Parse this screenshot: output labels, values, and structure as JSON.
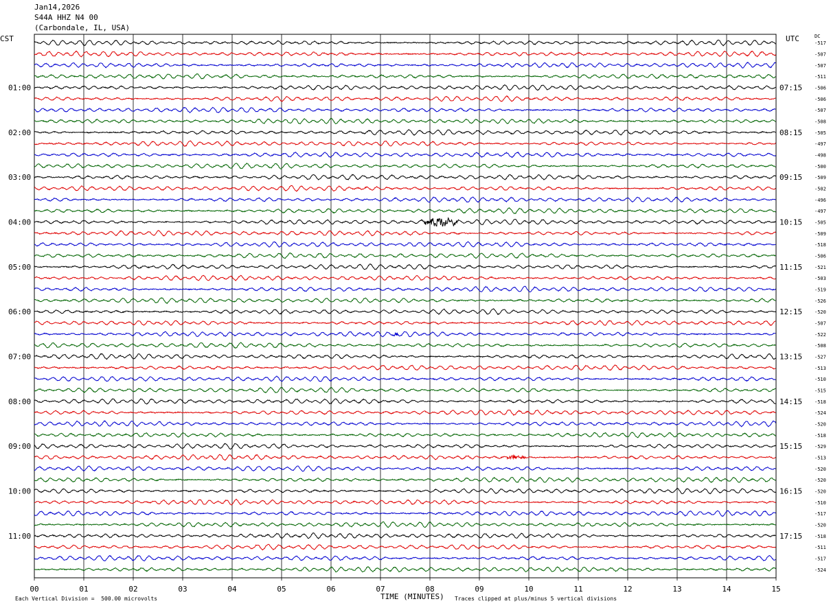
{
  "header": {
    "date": "Jan14,2026",
    "station": "S44A HHZ N4 00",
    "location": "(Carbondale, IL, USA)"
  },
  "labels": {
    "left_tz": "CST",
    "right_tz": "UTC",
    "dc_header": "DC",
    "xlabel": "TIME (MINUTES)",
    "footer_left": "Each Vertical Division =  500.00 microvolts",
    "footer_right": "Traces clipped at plus/minus 5 vertical divisions"
  },
  "colors": {
    "trace_cycle": [
      "#000000",
      "#e00000",
      "#0000d0",
      "#006400"
    ],
    "grid": "#000000"
  },
  "chart_data": {
    "type": "line",
    "title": "",
    "xlabel": "TIME (MINUTES)",
    "ylabel": "",
    "xlim": [
      0,
      15
    ],
    "x_ticks": [
      "00",
      "01",
      "02",
      "03",
      "04",
      "05",
      "06",
      "07",
      "08",
      "09",
      "10",
      "11",
      "12",
      "13",
      "14",
      "15"
    ],
    "left_time_labels": [
      "01:00",
      "02:00",
      "03:00",
      "04:00",
      "05:00",
      "06:00",
      "07:00",
      "08:00",
      "09:00",
      "10:00",
      "11:00"
    ],
    "right_time_labels": [
      "07:15",
      "08:15",
      "09:15",
      "10:15",
      "11:15",
      "12:15",
      "13:15",
      "14:15",
      "15:15",
      "16:15",
      "17:15"
    ],
    "dc_offsets": [
      -517,
      -507,
      -507,
      -511,
      -506,
      -506,
      -507,
      -508,
      -505,
      -497,
      -498,
      -500,
      -509,
      -502,
      -496,
      -497,
      -505,
      -509,
      -518,
      -506,
      -521,
      -503,
      -519,
      -526,
      -520,
      -507,
      -522,
      -508,
      -527,
      -513,
      -510,
      -515,
      -518,
      -524,
      -520,
      -518,
      -529,
      -513,
      -520,
      -520,
      -520,
      -510,
      -517,
      -520,
      -518,
      -511,
      -517,
      -524
    ],
    "events": [
      {
        "trace": 16,
        "minute_start": 7.8,
        "minute_end": 8.6,
        "amplitude": 3.2
      },
      {
        "trace": 26,
        "minute_start": 7.2,
        "minute_end": 7.4,
        "amplitude": 2.0
      },
      {
        "trace": 37,
        "minute_start": 9.5,
        "minute_end": 10.0,
        "amplitude": 1.6
      }
    ]
  }
}
